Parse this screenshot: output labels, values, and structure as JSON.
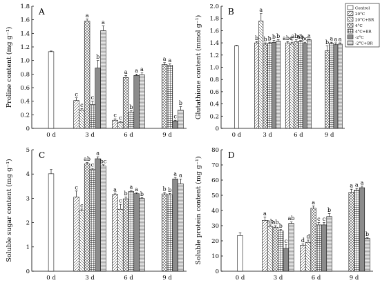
{
  "legend": {
    "title": "",
    "entries": [
      "Control",
      "20°C",
      "20°C+BR",
      "4°C",
      "4°C+BR",
      "-2°C",
      "-2°C+BR"
    ]
  },
  "chart_data": [
    {
      "type": "bar",
      "panel": "A",
      "ylabel": "Proline content (mg g⁻¹)",
      "ylim": [
        0,
        1.8
      ],
      "yticks": [
        "0",
        "0.2",
        "0.4",
        "0.6",
        "0.8",
        "1.0",
        "1.2",
        "1.4",
        "1.6",
        "1.8"
      ],
      "categories": [
        "0 d",
        "3 d",
        "6 d",
        "9 d"
      ],
      "groups": [
        {
          "category": "0 d",
          "bars": [
            {
              "series": 0,
              "value": 1.13,
              "err": 0.01,
              "letter": ""
            }
          ]
        },
        {
          "category": "3 d",
          "bars": [
            {
              "series": 1,
              "value": 0.41,
              "err": 0.04,
              "letter": "c"
            },
            {
              "series": 2,
              "value": 0.27,
              "err": 0.02,
              "letter": "c"
            },
            {
              "series": 3,
              "value": 1.58,
              "err": 0.03,
              "letter": "a"
            },
            {
              "series": 4,
              "value": 0.35,
              "err": 0.05,
              "letter": "c"
            },
            {
              "series": 5,
              "value": 0.89,
              "err": 0.11,
              "letter": "b"
            },
            {
              "series": 6,
              "value": 1.44,
              "err": 0.07,
              "letter": "a"
            }
          ]
        },
        {
          "category": "6 d",
          "bars": [
            {
              "series": 1,
              "value": 0.12,
              "err": 0.02,
              "letter": "c"
            },
            {
              "series": 2,
              "value": 0.09,
              "err": 0.01,
              "letter": "c"
            },
            {
              "series": 3,
              "value": 0.75,
              "err": 0.03,
              "letter": "a"
            },
            {
              "series": 4,
              "value": 0.24,
              "err": 0.02,
              "letter": "b"
            },
            {
              "series": 5,
              "value": 0.78,
              "err": 0.02,
              "letter": "a"
            },
            {
              "series": 6,
              "value": 0.79,
              "err": 0.03,
              "letter": "a"
            }
          ]
        },
        {
          "category": "9 d",
          "bars": [
            {
              "series": 3,
              "value": 0.94,
              "err": 0.03,
              "letter": "a"
            },
            {
              "series": 4,
              "value": 0.93,
              "err": 0.02,
              "letter": "a"
            },
            {
              "series": 5,
              "value": 0.11,
              "err": 0.01,
              "letter": "c"
            },
            {
              "series": 6,
              "value": 0.27,
              "err": 0.05,
              "letter": "b"
            }
          ]
        }
      ]
    },
    {
      "type": "bar",
      "panel": "B",
      "ylabel": "Glutathione content (mmol g⁻¹)",
      "ylim": [
        0,
        2.0
      ],
      "yticks": [
        "0",
        "0.2",
        "0.4",
        "0.6",
        "0.8",
        "1.0",
        "1.2",
        "1.4",
        "1.6",
        "1.8",
        "2.0"
      ],
      "categories": [
        "0 d",
        "3 d",
        "6 d",
        "9 d"
      ],
      "groups": [
        {
          "category": "0 d",
          "bars": [
            {
              "series": 0,
              "value": 1.35,
              "err": 0.01,
              "letter": ""
            }
          ]
        },
        {
          "category": "3 d",
          "bars": [
            {
              "series": 1,
              "value": 1.4,
              "err": 0.02,
              "letter": "b"
            },
            {
              "series": 2,
              "value": 1.76,
              "err": 0.12,
              "letter": "a"
            },
            {
              "series": 3,
              "value": 1.38,
              "err": 0.02,
              "letter": "b"
            },
            {
              "series": 4,
              "value": 1.39,
              "err": 0.02,
              "letter": "b"
            },
            {
              "series": 5,
              "value": 1.41,
              "err": 0.03,
              "letter": "b"
            },
            {
              "series": 6,
              "value": 1.43,
              "err": 0.02,
              "letter": "b"
            }
          ]
        },
        {
          "category": "6 d",
          "bars": [
            {
              "series": 1,
              "value": 1.4,
              "err": 0.02,
              "letter": "abc"
            },
            {
              "series": 2,
              "value": 1.38,
              "err": 0.03,
              "letter": "c"
            },
            {
              "series": 3,
              "value": 1.42,
              "err": 0.03,
              "letter": "abc"
            },
            {
              "series": 4,
              "value": 1.42,
              "err": 0.02,
              "letter": "ab"
            },
            {
              "series": 5,
              "value": 1.39,
              "err": 0.02,
              "letter": "bc"
            },
            {
              "series": 6,
              "value": 1.45,
              "err": 0.01,
              "letter": "a"
            }
          ]
        },
        {
          "category": "9 d",
          "bars": [
            {
              "series": 3,
              "value": 1.27,
              "err": 0.08,
              "letter": "b"
            },
            {
              "series": 4,
              "value": 1.39,
              "err": 0.02,
              "letter": "a"
            },
            {
              "series": 5,
              "value": 1.37,
              "err": 0.03,
              "letter": "a"
            },
            {
              "series": 6,
              "value": 1.38,
              "err": 0.02,
              "letter": "a"
            }
          ]
        }
      ]
    },
    {
      "type": "bar",
      "panel": "C",
      "ylabel": "Soluble sugar content (mg g⁻¹)",
      "ylim": [
        0,
        5
      ],
      "yticks": [
        "0",
        "1",
        "2",
        "3",
        "4",
        "5"
      ],
      "categories": [
        "0 d",
        "3 d",
        "6 d",
        "9 d"
      ],
      "groups": [
        {
          "category": "0 d",
          "bars": [
            {
              "series": 0,
              "value": 4.01,
              "err": 0.18,
              "letter": ""
            }
          ]
        },
        {
          "category": "3 d",
          "bars": [
            {
              "series": 1,
              "value": 3.05,
              "err": 0.25,
              "letter": "c"
            },
            {
              "series": 2,
              "value": 2.48,
              "err": 0.08,
              "letter": "c"
            },
            {
              "series": 3,
              "value": 4.42,
              "err": 0.05,
              "letter": "ab"
            },
            {
              "series": 4,
              "value": 4.18,
              "err": 0.05,
              "letter": "c"
            },
            {
              "series": 5,
              "value": 4.63,
              "err": 0.08,
              "letter": "a"
            },
            {
              "series": 6,
              "value": 4.33,
              "err": 0.05,
              "letter": "bc"
            }
          ]
        },
        {
          "category": "6 d",
          "bars": [
            {
              "series": 1,
              "value": 3.16,
              "err": 0.05,
              "letter": "a"
            },
            {
              "series": 2,
              "value": 2.55,
              "err": 0.2,
              "letter": "c"
            },
            {
              "series": 3,
              "value": 2.98,
              "err": 0.08,
              "letter": "b"
            },
            {
              "series": 4,
              "value": 3.28,
              "err": 0.04,
              "letter": "a"
            },
            {
              "series": 5,
              "value": 3.19,
              "err": 0.04,
              "letter": "a"
            },
            {
              "series": 6,
              "value": 2.99,
              "err": 0.04,
              "letter": "b"
            }
          ]
        },
        {
          "category": "9 d",
          "bars": [
            {
              "series": 3,
              "value": 3.18,
              "err": 0.06,
              "letter": "b"
            },
            {
              "series": 4,
              "value": 3.14,
              "err": 0.06,
              "letter": "b"
            },
            {
              "series": 5,
              "value": 3.8,
              "err": 0.06,
              "letter": "a"
            },
            {
              "series": 6,
              "value": 3.6,
              "err": 0.2,
              "letter": "a"
            }
          ]
        }
      ]
    },
    {
      "type": "bar",
      "panel": "D",
      "ylabel": "Soluble protein content (mg g⁻¹)",
      "ylim": [
        0,
        80
      ],
      "yticks": [
        "0",
        "10",
        "20",
        "30",
        "40",
        "50",
        "60",
        "70",
        "80"
      ],
      "categories": [
        "0 d",
        "3 d",
        "6 d",
        "9 d"
      ],
      "groups": [
        {
          "category": "0 d",
          "bars": [
            {
              "series": 0,
              "value": 23.5,
              "err": 1.8,
              "letter": ""
            }
          ]
        },
        {
          "category": "3 d",
          "bars": [
            {
              "series": 1,
              "value": 33.5,
              "err": 2.2,
              "letter": "a"
            },
            {
              "series": 2,
              "value": 29.5,
              "err": 1.0,
              "letter": "ab"
            },
            {
              "series": 3,
              "value": 29.0,
              "err": 1.0,
              "letter": "ab"
            },
            {
              "series": 4,
              "value": 26.5,
              "err": 1.0,
              "letter": "b"
            },
            {
              "series": 5,
              "value": 15.0,
              "err": 2.5,
              "letter": "c"
            },
            {
              "series": 6,
              "value": 31.5,
              "err": 1.0,
              "letter": "ab"
            }
          ]
        },
        {
          "category": "6 d",
          "bars": [
            {
              "series": 1,
              "value": 17.0,
              "err": 1.0,
              "letter": "d"
            },
            {
              "series": 2,
              "value": 19.0,
              "err": 1.5,
              "letter": "d"
            },
            {
              "series": 3,
              "value": 41.5,
              "err": 1.5,
              "letter": "a"
            },
            {
              "series": 4,
              "value": 30.5,
              "err": 1.5,
              "letter": "c"
            },
            {
              "series": 5,
              "value": 30.5,
              "err": 1.5,
              "letter": "c"
            },
            {
              "series": 6,
              "value": 36.0,
              "err": 2.0,
              "letter": "b"
            }
          ]
        },
        {
          "category": "9 d",
          "bars": [
            {
              "series": 3,
              "value": 52.0,
              "err": 2.0,
              "letter": "a"
            },
            {
              "series": 4,
              "value": 53.5,
              "err": 1.0,
              "letter": "a"
            },
            {
              "series": 5,
              "value": 55.0,
              "err": 1.0,
              "letter": "a"
            },
            {
              "series": 6,
              "value": 21.5,
              "err": 0.5,
              "letter": "b"
            }
          ]
        }
      ]
    }
  ]
}
